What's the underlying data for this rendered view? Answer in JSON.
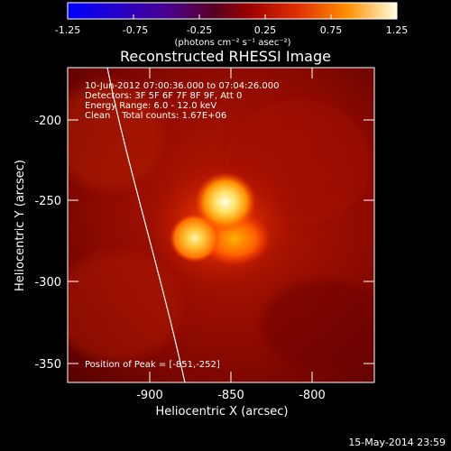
{
  "colorbar": {
    "tick_labels": [
      "-1.25",
      "-0.75",
      "-0.25",
      "0.25",
      "0.75",
      "1.25"
    ],
    "units_label": "(photons cm⁻² s⁻¹ asec⁻²)"
  },
  "title": "Reconstructed RHESSI Image",
  "info": {
    "time_range": "10-Jun-2012 07:00:36.000 to 07:04:26.000",
    "detectors": "Detectors: 3F 5F 6F 7F 8F 9F, Att 0",
    "energy": "Energy Range: 6.0 - 12.0 keV",
    "clean": "Clean    Total counts: 1.67E+06",
    "peak": "Position of Peak = [-851,-252]"
  },
  "axes": {
    "xlabel": "Heliocentric X (arcsec)",
    "ylabel": "Heliocentric Y (arcsec)",
    "xtick_labels": [
      "-900",
      "-850",
      "-800"
    ],
    "ytick_labels": [
      "-200",
      "-250",
      "-300",
      "-350"
    ]
  },
  "footer_date": "15-May-2014 23:59",
  "colors": {
    "background": "#000000",
    "text": "#ffffff"
  }
}
